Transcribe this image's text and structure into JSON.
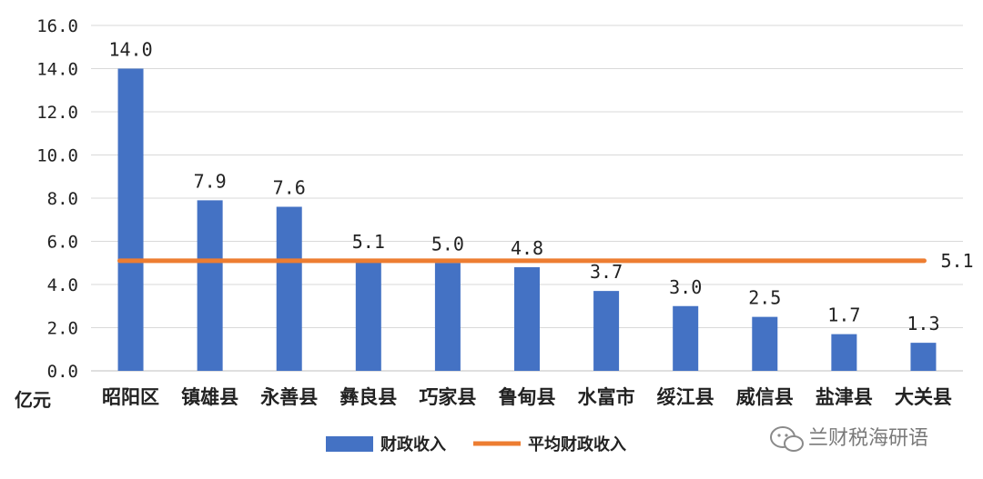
{
  "chart_data": {
    "type": "bar",
    "ylabel": "亿元",
    "ylim": [
      0,
      16
    ],
    "yticks": [
      "0.0",
      "2.0",
      "4.0",
      "6.0",
      "8.0",
      "10.0",
      "12.0",
      "14.0",
      "16.0"
    ],
    "grid": true,
    "legend_position": "bottom",
    "categories": [
      "昭阳区",
      "镇雄县",
      "永善县",
      "彝良县",
      "巧家县",
      "鲁甸县",
      "水富市",
      "绥江县",
      "威信县",
      "盐津县",
      "大关县"
    ],
    "series": [
      {
        "name": "财政收入",
        "type": "bar",
        "color": "#4472C4",
        "values": [
          14.0,
          7.9,
          7.6,
          5.1,
          5.0,
          4.8,
          3.7,
          3.0,
          2.5,
          1.7,
          1.3
        ],
        "labels": [
          "14.0",
          "7.9",
          "7.6",
          "5.1",
          "5.0",
          "4.8",
          "3.7",
          "3.0",
          "2.5",
          "1.7",
          "1.3"
        ]
      },
      {
        "name": "平均财政收入",
        "type": "line",
        "color": "#ED7D31",
        "value": 5.1,
        "label": "5.1"
      }
    ]
  },
  "watermark": {
    "text": "兰财税海研语",
    "icon": "wechat-icon"
  }
}
